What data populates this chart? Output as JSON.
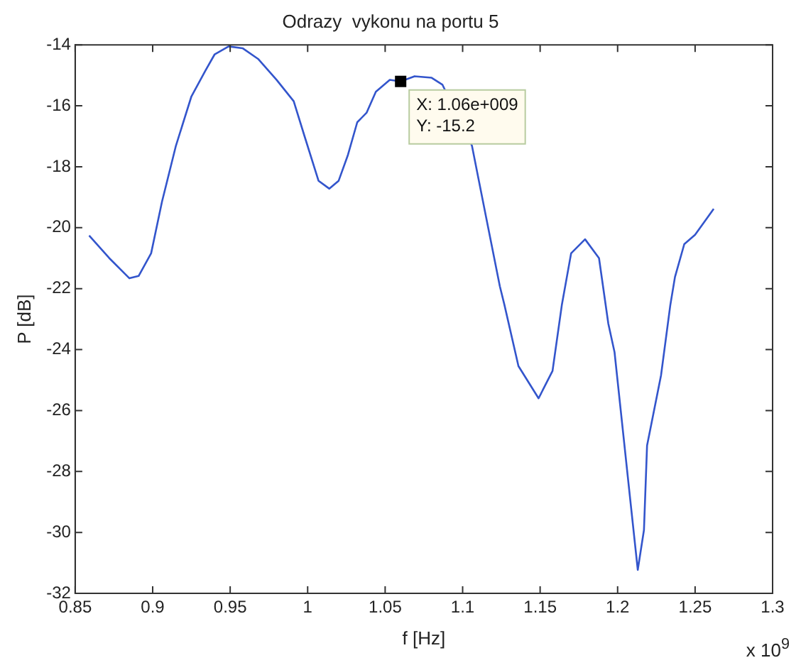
{
  "chart_data": {
    "type": "line",
    "title": "Odrazy  vykonu na portu 5",
    "xlabel": "f [Hz]",
    "ylabel": "P [dB]",
    "x": [
      0.859,
      0.872,
      0.885,
      0.891,
      0.899,
      0.906,
      0.915,
      0.925,
      0.934,
      0.94,
      0.949,
      0.958,
      0.968,
      0.98,
      0.991,
      0.998,
      1.007,
      1.014,
      1.02,
      1.026,
      1.032,
      1.038,
      1.044,
      1.053,
      1.06,
      1.069,
      1.08,
      1.087,
      1.106,
      1.115,
      1.124,
      1.127,
      1.136,
      1.149,
      1.158,
      1.164,
      1.17,
      1.179,
      1.188,
      1.194,
      1.198,
      1.207,
      1.213,
      1.217,
      1.219,
      1.228,
      1.234,
      1.237,
      1.243,
      1.25,
      1.262
    ],
    "series": [
      {
        "color": "#3355cc",
        "values": [
          -20.26,
          -21.0,
          -21.66,
          -21.58,
          -20.84,
          -19.15,
          -17.31,
          -15.69,
          -14.85,
          -14.31,
          -14.05,
          -14.11,
          -14.46,
          -15.15,
          -15.85,
          -17.0,
          -18.46,
          -18.72,
          -18.46,
          -17.61,
          -16.54,
          -16.23,
          -15.54,
          -15.15,
          -15.2,
          -15.03,
          -15.08,
          -15.31,
          -17.31,
          -19.62,
          -21.92,
          -22.54,
          -24.54,
          -25.6,
          -24.7,
          -22.54,
          -20.84,
          -20.38,
          -21.0,
          -23.15,
          -24.08,
          -28.38,
          -31.23,
          -29.92,
          -27.15,
          -24.85,
          -22.54,
          -21.62,
          -20.54,
          -20.23,
          -19.38
        ]
      }
    ],
    "xlim": [
      0.85,
      1.3
    ],
    "xticks": [
      0.85,
      0.9,
      0.95,
      1,
      1.05,
      1.1,
      1.15,
      1.2,
      1.25,
      1.3
    ],
    "ylim": [
      -32,
      -14
    ],
    "yticks": [
      -32,
      -30,
      -28,
      -26,
      -24,
      -22,
      -20,
      -18,
      -16,
      -14
    ],
    "grid": false,
    "legend": false,
    "marker": "none",
    "line_style": "solid",
    "annotations": [
      {
        "text": "X: 1.06e+009\nY: -15.2",
        "x": 1.06,
        "y": -15.2
      },
      "x 10$^{9}$"
    ]
  }
}
